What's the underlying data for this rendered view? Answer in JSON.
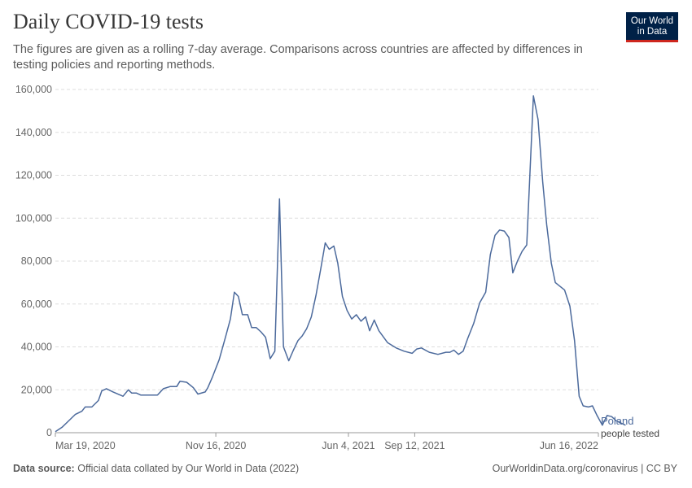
{
  "header": {
    "title": "Daily COVID-19 tests",
    "subtitle": "The figures are given as a rolling 7-day average. Comparisons across countries are affected by differences in testing policies and reporting methods."
  },
  "logo": {
    "line1": "Our World",
    "line2": "in Data",
    "bg": "#002147",
    "accent": "#ce261e"
  },
  "footer": {
    "source_label": "Data source:",
    "source_text": "Official data collated by Our World in Data (2022)",
    "url": "OurWorldinData.org/coronavirus | CC BY"
  },
  "chart_data": {
    "type": "line",
    "y_ticks": [
      "0",
      "20,000",
      "40,000",
      "60,000",
      "80,000",
      "100,000",
      "120,000",
      "140,000",
      "160,000"
    ],
    "ylim": [
      0,
      160000
    ],
    "x_ticks": [
      {
        "date": "2020-03-19",
        "label": "Mar 19, 2020"
      },
      {
        "date": "2020-11-16",
        "label": "Nov 16, 2020"
      },
      {
        "date": "2021-06-04",
        "label": "Jun 4, 2021"
      },
      {
        "date": "2021-09-12",
        "label": "Sep 12, 2021"
      },
      {
        "date": "2022-06-16",
        "label": "Jun 16, 2022"
      }
    ],
    "xlim": [
      "2020-03-19",
      "2022-06-16"
    ],
    "grid": true,
    "series": [
      {
        "name": "Poland",
        "sublabel": "people tested",
        "color": "#4c6a9c",
        "points": [
          [
            "2020-03-19",
            500
          ],
          [
            "2020-03-29",
            2500
          ],
          [
            "2020-04-08",
            5500
          ],
          [
            "2020-04-18",
            8500
          ],
          [
            "2020-04-28",
            10000
          ],
          [
            "2020-05-03",
            12000
          ],
          [
            "2020-05-13",
            12000
          ],
          [
            "2020-05-23",
            15000
          ],
          [
            "2020-05-28",
            19500
          ],
          [
            "2020-06-04",
            20500
          ],
          [
            "2020-06-14",
            19000
          ],
          [
            "2020-06-29",
            17000
          ],
          [
            "2020-07-07",
            20000
          ],
          [
            "2020-07-12",
            18500
          ],
          [
            "2020-07-19",
            18500
          ],
          [
            "2020-07-26",
            17500
          ],
          [
            "2020-08-09",
            17500
          ],
          [
            "2020-08-20",
            17500
          ],
          [
            "2020-08-29",
            20500
          ],
          [
            "2020-09-08",
            21500
          ],
          [
            "2020-09-18",
            21500
          ],
          [
            "2020-09-23",
            24000
          ],
          [
            "2020-10-03",
            23500
          ],
          [
            "2020-10-13",
            21000
          ],
          [
            "2020-10-20",
            18000
          ],
          [
            "2020-10-31",
            19000
          ],
          [
            "2020-11-04",
            21000
          ],
          [
            "2020-11-11",
            26000
          ],
          [
            "2020-11-21",
            34000
          ],
          [
            "2020-12-01",
            45000
          ],
          [
            "2020-12-08",
            53000
          ],
          [
            "2020-12-14",
            65500
          ],
          [
            "2020-12-20",
            63500
          ],
          [
            "2020-12-26",
            55000
          ],
          [
            "2021-01-03",
            55000
          ],
          [
            "2021-01-09",
            49000
          ],
          [
            "2021-01-16",
            49000
          ],
          [
            "2021-01-23",
            47000
          ],
          [
            "2021-01-30",
            44500
          ],
          [
            "2021-02-06",
            34500
          ],
          [
            "2021-02-13",
            38000
          ],
          [
            "2021-02-20",
            109000
          ],
          [
            "2021-02-26",
            40000
          ],
          [
            "2021-03-06",
            33500
          ],
          [
            "2021-03-13",
            38500
          ],
          [
            "2021-03-20",
            43000
          ],
          [
            "2021-03-26",
            45000
          ],
          [
            "2021-04-02",
            48500
          ],
          [
            "2021-04-09",
            54000
          ],
          [
            "2021-04-16",
            64000
          ],
          [
            "2021-04-23",
            76000
          ],
          [
            "2021-04-30",
            88500
          ],
          [
            "2021-05-06",
            85500
          ],
          [
            "2021-05-13",
            87000
          ],
          [
            "2021-05-19",
            79000
          ],
          [
            "2021-05-26",
            63500
          ],
          [
            "2021-06-02",
            57000
          ],
          [
            "2021-06-09",
            53000
          ],
          [
            "2021-06-16",
            55000
          ],
          [
            "2021-06-23",
            52000
          ],
          [
            "2021-06-30",
            54000
          ],
          [
            "2021-07-06",
            47500
          ],
          [
            "2021-07-13",
            52500
          ],
          [
            "2021-07-20",
            47500
          ],
          [
            "2021-08-02",
            42000
          ],
          [
            "2021-08-15",
            39500
          ],
          [
            "2021-08-27",
            38000
          ],
          [
            "2021-09-08",
            37000
          ],
          [
            "2021-09-15",
            39000
          ],
          [
            "2021-09-22",
            39500
          ],
          [
            "2021-10-04",
            37500
          ],
          [
            "2021-10-17",
            36500
          ],
          [
            "2021-10-29",
            37500
          ],
          [
            "2021-11-04",
            37500
          ],
          [
            "2021-11-10",
            38500
          ],
          [
            "2021-11-17",
            36500
          ],
          [
            "2021-11-24",
            38000
          ],
          [
            "2021-12-01",
            44000
          ],
          [
            "2021-12-10",
            51000
          ],
          [
            "2021-12-19",
            60500
          ],
          [
            "2021-12-28",
            65500
          ],
          [
            "2022-01-04",
            83000
          ],
          [
            "2022-01-11",
            92000
          ],
          [
            "2022-01-18",
            94500
          ],
          [
            "2022-01-25",
            94000
          ],
          [
            "2022-02-01",
            91000
          ],
          [
            "2022-02-07",
            74500
          ],
          [
            "2022-02-14",
            80000
          ],
          [
            "2022-02-21",
            84500
          ],
          [
            "2022-02-28",
            87500
          ],
          [
            "2022-03-10",
            157000
          ],
          [
            "2022-03-17",
            146000
          ],
          [
            "2022-03-24",
            117000
          ],
          [
            "2022-03-30",
            97000
          ],
          [
            "2022-04-06",
            79000
          ],
          [
            "2022-04-12",
            70000
          ],
          [
            "2022-04-26",
            66500
          ],
          [
            "2022-05-04",
            59000
          ],
          [
            "2022-05-11",
            43000
          ],
          [
            "2022-05-18",
            17000
          ],
          [
            "2022-05-24",
            12500
          ],
          [
            "2022-06-01",
            12000
          ],
          [
            "2022-06-07",
            12500
          ],
          [
            "2022-06-14",
            8000
          ],
          [
            "2022-06-22",
            3500
          ],
          [
            "2022-06-29",
            8000
          ],
          [
            "2022-07-06",
            7500
          ],
          [
            "2022-07-13",
            5500
          ],
          [
            "2022-07-27",
            3500
          ]
        ]
      }
    ]
  }
}
